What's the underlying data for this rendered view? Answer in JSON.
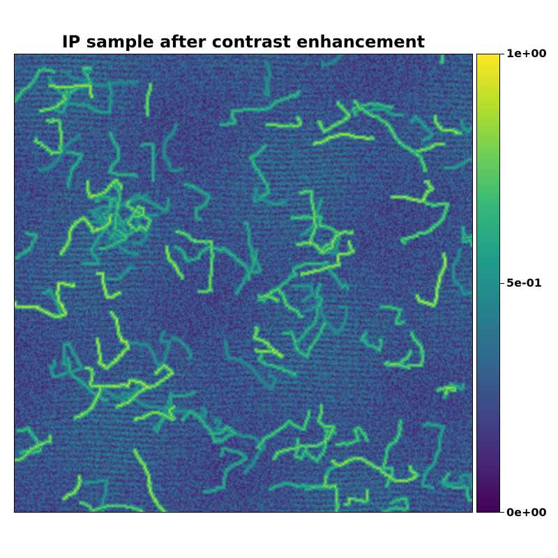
{
  "title": "IP sample after contrast enhancement",
  "colormap": {
    "name": "viridis",
    "stops": [
      "#440154",
      "#482878",
      "#3e4989",
      "#31688e",
      "#26828e",
      "#1f9e89",
      "#35b779",
      "#6ece58",
      "#b5de2b",
      "#fde725"
    ]
  },
  "colorbar": {
    "min": 0,
    "max": 1,
    "ticks": [
      {
        "value": 1.0,
        "label": "1e+00"
      },
      {
        "value": 0.5,
        "label": "5e-01"
      },
      {
        "value": 0.0,
        "label": "0e+00"
      }
    ]
  }
}
